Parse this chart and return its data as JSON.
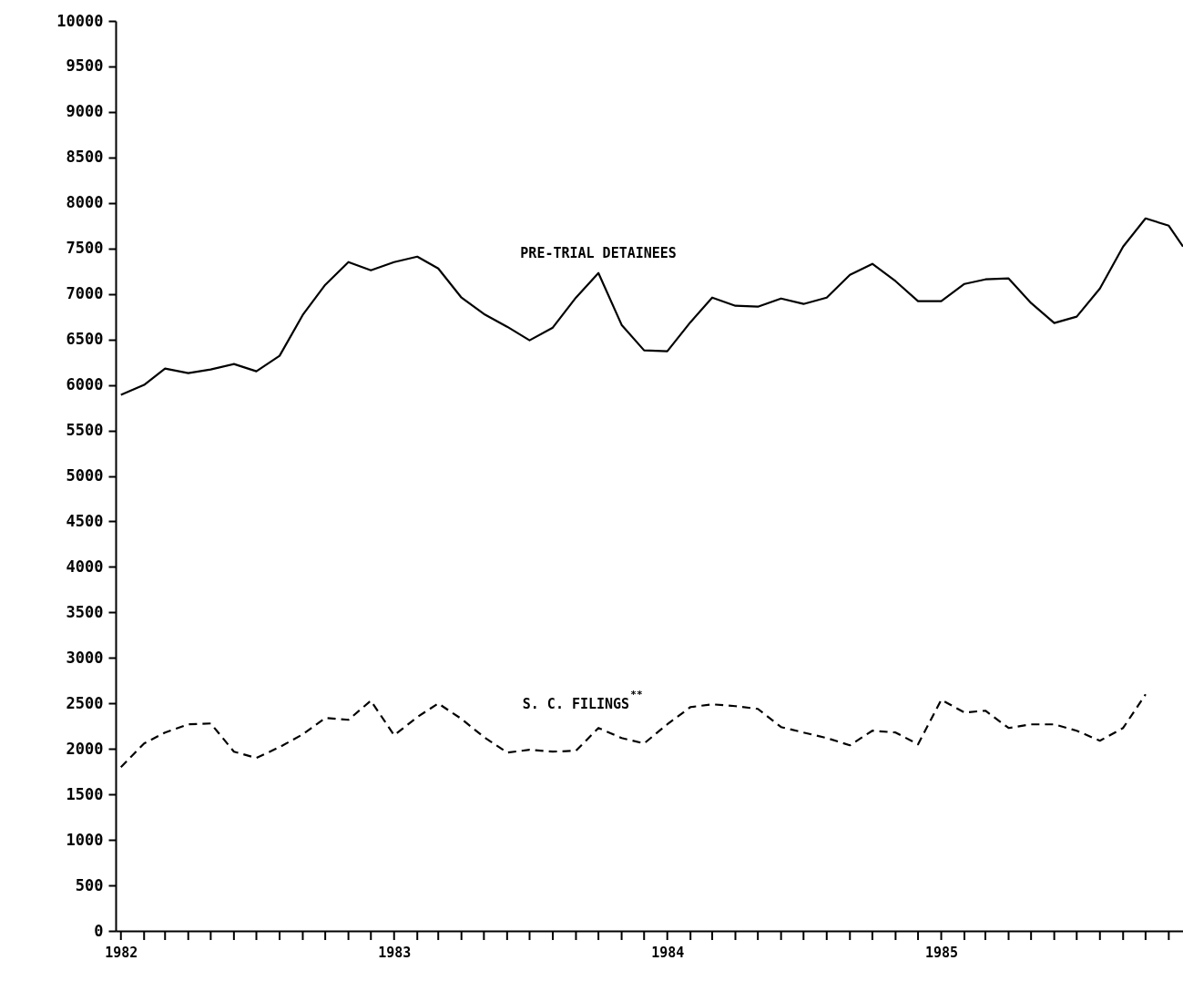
{
  "chart_data": {
    "type": "line",
    "xlim": [
      "1981-12-25",
      "1985-11-20"
    ],
    "ylim": [
      0,
      10000
    ],
    "yticks": [
      0,
      500,
      1000,
      1500,
      2000,
      2500,
      3000,
      3500,
      4000,
      4500,
      5000,
      5500,
      6000,
      6500,
      7000,
      7500,
      8000,
      8500,
      9000,
      9500,
      10000
    ],
    "xticks": [
      {
        "value": "1982-01",
        "label": "1982"
      },
      {
        "value": "1982-02",
        "label": null
      },
      {
        "value": "1982-03",
        "label": null
      },
      {
        "value": "1982-04",
        "label": null
      },
      {
        "value": "1982-05",
        "label": null
      },
      {
        "value": "1982-06",
        "label": null
      },
      {
        "value": "1982-07",
        "label": null
      },
      {
        "value": "1982-08",
        "label": null
      },
      {
        "value": "1982-09",
        "label": null
      },
      {
        "value": "1982-10",
        "label": null
      },
      {
        "value": "1982-11",
        "label": null
      },
      {
        "value": "1982-12",
        "label": null
      },
      {
        "value": "1983-01",
        "label": "1983"
      },
      {
        "value": "1983-02",
        "label": null
      },
      {
        "value": "1983-03",
        "label": null
      },
      {
        "value": "1983-04",
        "label": null
      },
      {
        "value": "1983-05",
        "label": null
      },
      {
        "value": "1983-06",
        "label": null
      },
      {
        "value": "1983-07",
        "label": null
      },
      {
        "value": "1983-08",
        "label": null
      },
      {
        "value": "1983-09",
        "label": null
      },
      {
        "value": "1983-10",
        "label": null
      },
      {
        "value": "1983-11",
        "label": null
      },
      {
        "value": "1983-12",
        "label": null
      },
      {
        "value": "1984-01",
        "label": "1984"
      },
      {
        "value": "1984-02",
        "label": null
      },
      {
        "value": "1984-03",
        "label": null
      },
      {
        "value": "1984-04",
        "label": null
      },
      {
        "value": "1984-05",
        "label": null
      },
      {
        "value": "1984-06",
        "label": null
      },
      {
        "value": "1984-07",
        "label": null
      },
      {
        "value": "1984-08",
        "label": null
      },
      {
        "value": "1984-09",
        "label": null
      },
      {
        "value": "1984-10",
        "label": null
      },
      {
        "value": "1984-11",
        "label": null
      },
      {
        "value": "1984-12",
        "label": null
      },
      {
        "value": "1985-01",
        "label": "1985"
      },
      {
        "value": "1985-02",
        "label": null
      },
      {
        "value": "1985-03",
        "label": null
      },
      {
        "value": "1985-04",
        "label": null
      },
      {
        "value": "1985-05",
        "label": null
      },
      {
        "value": "1985-06",
        "label": null
      },
      {
        "value": "1985-07",
        "label": null
      },
      {
        "value": "1985-08",
        "label": null
      },
      {
        "value": "1985-09",
        "label": null
      },
      {
        "value": "1985-10",
        "label": null
      },
      {
        "value": "1985-11",
        "label": null
      }
    ],
    "grid": false,
    "legend": false,
    "series": [
      {
        "name": "PRE-TRIAL DETAINEES",
        "color": "#000000",
        "line_style": "solid",
        "x": [
          "1982-01",
          "1982-02",
          "1982-03",
          "1982-04",
          "1982-05",
          "1982-06",
          "1982-07",
          "1982-08",
          "1982-09",
          "1982-10",
          "1982-11",
          "1982-12",
          "1983-01",
          "1983-02",
          "1983-03",
          "1983-04",
          "1983-05",
          "1983-06",
          "1983-07",
          "1983-08",
          "1983-09",
          "1983-10",
          "1983-11",
          "1983-12",
          "1984-01",
          "1984-02",
          "1984-03",
          "1984-04",
          "1984-05",
          "1984-06",
          "1984-07",
          "1984-08",
          "1984-09",
          "1984-10",
          "1984-11",
          "1984-12",
          "1985-01",
          "1985-02",
          "1985-03",
          "1985-04",
          "1985-05",
          "1985-06",
          "1985-07",
          "1985-08",
          "1985-09",
          "1985-10",
          "1985-11",
          "1985-11-20"
        ],
        "values": [
          5890,
          6000,
          6180,
          6130,
          6170,
          6230,
          6150,
          6320,
          6770,
          7100,
          7350,
          7260,
          7350,
          7410,
          7280,
          6960,
          6780,
          6640,
          6490,
          6630,
          6960,
          7230,
          6660,
          6380,
          6370,
          6690,
          6960,
          6870,
          6860,
          6950,
          6890,
          6960,
          7210,
          7330,
          7140,
          6920,
          6920,
          7110,
          7160,
          7170,
          6900,
          6680,
          6750,
          7060,
          7520,
          7830,
          7750,
          7520
        ]
      },
      {
        "name": "S. C. FILINGS$^{**}$",
        "color": "#000000",
        "line_style": "dashed",
        "x": [
          "1982-01",
          "1982-02",
          "1982-03",
          "1982-04",
          "1982-05",
          "1982-06",
          "1982-07",
          "1982-08",
          "1982-09",
          "1982-10",
          "1982-11",
          "1982-12",
          "1983-01",
          "1983-02",
          "1983-03",
          "1983-04",
          "1983-05",
          "1983-06",
          "1983-07",
          "1983-08",
          "1983-09",
          "1983-10",
          "1983-11",
          "1983-12",
          "1984-01",
          "1984-02",
          "1984-03",
          "1984-04",
          "1984-05",
          "1984-06",
          "1984-07",
          "1984-08",
          "1984-09",
          "1984-10",
          "1984-11",
          "1984-12",
          "1985-01",
          "1985-02",
          "1985-03",
          "1985-04",
          "1985-05",
          "1985-06",
          "1985-07",
          "1985-08",
          "1985-09",
          "1985-10"
        ],
        "values": [
          1800,
          2060,
          2180,
          2270,
          2280,
          1970,
          1900,
          2020,
          2160,
          2340,
          2320,
          2530,
          2150,
          2350,
          2500,
          2330,
          2130,
          1960,
          1990,
          1970,
          1980,
          2230,
          2120,
          2060,
          2270,
          2460,
          2490,
          2470,
          2440,
          2240,
          2180,
          2120,
          2040,
          2200,
          2180,
          2050,
          2540,
          2400,
          2420,
          2230,
          2270,
          2270,
          2200,
          2090,
          2230,
          2600
        ]
      }
    ]
  }
}
